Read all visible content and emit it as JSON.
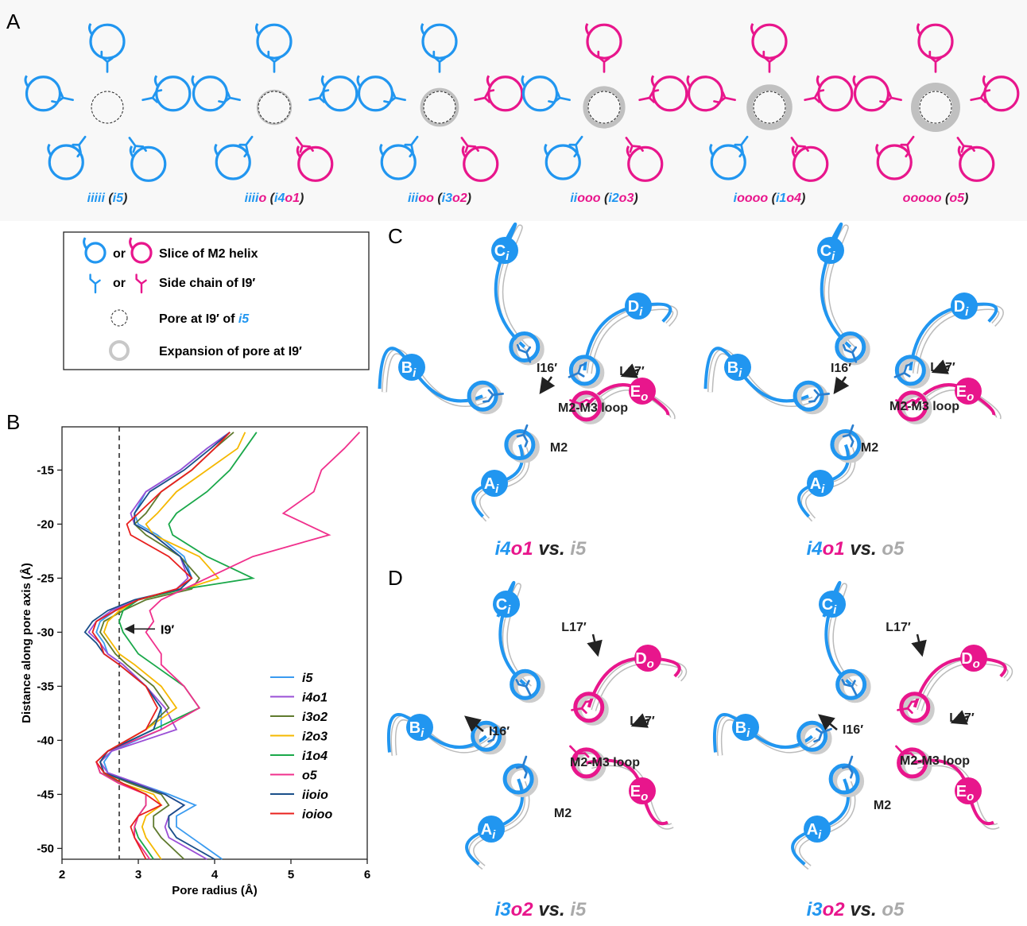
{
  "panel_labels": [
    "A",
    "B",
    "C",
    "D"
  ],
  "panel_a": {
    "diagrams": [
      {
        "label": [
          {
            "text": "iiiii",
            "color": "#2196f0"
          },
          {
            "text": " (",
            "color": "#222222"
          },
          {
            "text": "i5",
            "color": "#2196f0"
          },
          {
            "text": ")",
            "color": "#222222"
          }
        ]
      },
      {
        "label": [
          {
            "text": "iiii",
            "color": "#2196f0"
          },
          {
            "text": "o",
            "color": "#e8168c"
          },
          {
            "text": " (",
            "color": "#222222"
          },
          {
            "text": "i4",
            "color": "#2196f0"
          },
          {
            "text": "o1",
            "color": "#e8168c"
          },
          {
            "text": ")",
            "color": "#222222"
          }
        ]
      },
      {
        "label": [
          {
            "text": "iii",
            "color": "#2196f0"
          },
          {
            "text": "oo",
            "color": "#e8168c"
          },
          {
            "text": " (",
            "color": "#222222"
          },
          {
            "text": "i3",
            "color": "#2196f0"
          },
          {
            "text": "o2",
            "color": "#e8168c"
          },
          {
            "text": ")",
            "color": "#222222"
          }
        ]
      },
      {
        "label": [
          {
            "text": "ii",
            "color": "#2196f0"
          },
          {
            "text": "ooo",
            "color": "#e8168c"
          },
          {
            "text": " (",
            "color": "#222222"
          },
          {
            "text": "i2",
            "color": "#2196f0"
          },
          {
            "text": "o3",
            "color": "#e8168c"
          },
          {
            "text": ")",
            "color": "#222222"
          }
        ]
      },
      {
        "label": [
          {
            "text": "i",
            "color": "#2196f0"
          },
          {
            "text": "oooo",
            "color": "#e8168c"
          },
          {
            "text": " (",
            "color": "#222222"
          },
          {
            "text": "i1",
            "color": "#2196f0"
          },
          {
            "text": "o4",
            "color": "#e8168c"
          },
          {
            "text": ")",
            "color": "#222222"
          }
        ]
      },
      {
        "label": [
          {
            "text": "ooooo",
            "color": "#e8168c"
          },
          {
            "text": " (",
            "color": "#222222"
          },
          {
            "text": "o5",
            "color": "#e8168c"
          },
          {
            "text": ")",
            "color": "#222222"
          }
        ]
      }
    ]
  },
  "legend": {
    "helix": {
      "or": "or",
      "text": "Slice of M2 helix"
    },
    "side_chain": {
      "or": "or",
      "text": "Side chain of I9′"
    },
    "pore": {
      "text": "Pore at I9′ of ",
      "highlight": "i5"
    },
    "expansion": {
      "text": "Expansion of pore at I9′"
    }
  },
  "chart_data": {
    "type": "line",
    "orientation": "vertical",
    "xlabel": "Pore radius (Å)",
    "ylabel": "Distance along pore axis (Å)",
    "xlim": [
      2,
      6
    ],
    "xticks": [
      2,
      3,
      4,
      5,
      6
    ],
    "ylim": [
      -51,
      -11
    ],
    "yticks": [
      -15,
      -20,
      -25,
      -30,
      -35,
      -40,
      -45,
      -50
    ],
    "reference_line": 2.75,
    "annotation": {
      "text": "I9′",
      "y": -29.7,
      "x": 3.25
    },
    "y": [
      -11.5,
      -13,
      -15,
      -17,
      -19,
      -20,
      -21,
      -23,
      -25,
      -26,
      -27,
      -28,
      -29,
      -30,
      -31,
      -32,
      -33,
      -35,
      -37,
      -39,
      -41,
      -42,
      -43,
      -44,
      -45,
      -46,
      -47,
      -48,
      -49,
      -51
    ],
    "series": [
      {
        "name": "i5",
        "color": "#3a9bf0",
        "values": [
          4.2,
          3.9,
          3.55,
          3.1,
          2.95,
          3.0,
          3.25,
          3.6,
          3.7,
          3.55,
          3.0,
          2.7,
          2.5,
          2.45,
          2.55,
          2.6,
          2.8,
          3.1,
          3.3,
          3.3,
          2.65,
          2.55,
          2.6,
          3.0,
          3.4,
          3.75,
          3.5,
          3.5,
          3.7,
          4.1
        ]
      },
      {
        "name": "i4o1",
        "color": "#9a4fd6",
        "values": [
          4.2,
          3.9,
          3.55,
          3.1,
          2.9,
          2.95,
          3.2,
          3.55,
          3.65,
          3.5,
          3.0,
          2.65,
          2.45,
          2.35,
          2.5,
          2.6,
          2.8,
          3.1,
          3.35,
          3.5,
          2.65,
          2.5,
          2.6,
          3.0,
          3.35,
          3.6,
          3.4,
          3.35,
          3.4,
          3.9
        ]
      },
      {
        "name": "i3o2",
        "color": "#5f7a2e",
        "values": [
          4.25,
          4.0,
          3.7,
          3.3,
          3.1,
          2.95,
          3.1,
          3.55,
          3.8,
          3.7,
          3.1,
          2.8,
          2.55,
          2.5,
          2.6,
          2.7,
          2.85,
          3.2,
          3.4,
          3.1,
          2.6,
          2.5,
          2.55,
          2.9,
          3.3,
          3.4,
          3.2,
          3.2,
          3.3,
          3.6
        ]
      },
      {
        "name": "i2o3",
        "color": "#f5b800",
        "values": [
          4.4,
          4.3,
          3.9,
          3.5,
          3.25,
          3.1,
          3.2,
          3.8,
          4.05,
          3.6,
          3.0,
          2.75,
          2.6,
          2.55,
          2.65,
          2.75,
          2.95,
          3.3,
          3.5,
          3.1,
          2.6,
          2.5,
          2.55,
          2.8,
          3.2,
          3.3,
          3.1,
          3.05,
          3.1,
          3.3
        ]
      },
      {
        "name": "i1o4",
        "color": "#1aa84a",
        "values": [
          4.55,
          4.4,
          4.2,
          3.9,
          3.5,
          3.4,
          3.45,
          3.9,
          4.5,
          3.6,
          3.0,
          2.8,
          2.75,
          2.8,
          2.9,
          3.0,
          3.2,
          3.6,
          3.8,
          3.2,
          2.6,
          2.45,
          2.5,
          2.8,
          3.1,
          3.1,
          3.0,
          2.95,
          3.0,
          3.2
        ]
      },
      {
        "name": "o5",
        "color": "#f0308c",
        "values": [
          5.9,
          5.7,
          5.4,
          5.3,
          4.9,
          5.2,
          5.5,
          4.5,
          3.9,
          3.6,
          3.3,
          3.15,
          3.2,
          3.1,
          3.2,
          3.3,
          3.3,
          3.6,
          3.8,
          3.3,
          2.6,
          2.45,
          2.5,
          2.75,
          3.1,
          3.1,
          3.0,
          2.95,
          2.95,
          3.15
        ]
      },
      {
        "name": "iioio",
        "color": "#1a4f8a",
        "values": [
          4.2,
          3.95,
          3.6,
          3.15,
          2.95,
          2.95,
          3.2,
          3.55,
          3.7,
          3.55,
          2.95,
          2.6,
          2.4,
          2.3,
          2.45,
          2.55,
          2.75,
          3.1,
          3.3,
          3.2,
          2.6,
          2.5,
          2.55,
          2.95,
          3.35,
          3.6,
          3.4,
          3.4,
          3.5,
          4.0
        ]
      },
      {
        "name": "ioioo",
        "color": "#e8201e",
        "values": [
          4.2,
          4.0,
          3.7,
          3.3,
          3.0,
          2.85,
          2.9,
          3.4,
          3.7,
          3.5,
          3.0,
          2.7,
          2.45,
          2.4,
          2.5,
          2.55,
          2.75,
          3.1,
          3.25,
          3.1,
          2.6,
          2.45,
          2.55,
          2.8,
          3.1,
          3.3,
          3.0,
          2.9,
          2.95,
          3.1
        ]
      }
    ]
  },
  "structures": [
    {
      "caption": [
        {
          "text": "i4",
          "color": "#2196f0"
        },
        {
          "text": "o1",
          "color": "#e8168c"
        },
        {
          "text": " vs. ",
          "color": "#222222"
        },
        {
          "text": "i5",
          "color": "#aaaaaa"
        }
      ],
      "subunits": [
        {
          "letter": "C",
          "sub": "i"
        },
        {
          "letter": "D",
          "sub": "i"
        },
        {
          "letter": "B",
          "sub": "i"
        },
        {
          "letter": "A",
          "sub": "i"
        },
        {
          "letter": "E",
          "sub": "o"
        }
      ],
      "annotations": [
        "I16′",
        "L17′",
        "M2-M3 loop",
        "M2"
      ]
    },
    {
      "caption": [
        {
          "text": "i4",
          "color": "#2196f0"
        },
        {
          "text": "o1",
          "color": "#e8168c"
        },
        {
          "text": " vs. ",
          "color": "#222222"
        },
        {
          "text": "o5",
          "color": "#aaaaaa"
        }
      ],
      "subunits": [
        {
          "letter": "C",
          "sub": "i"
        },
        {
          "letter": "D",
          "sub": "i"
        },
        {
          "letter": "B",
          "sub": "i"
        },
        {
          "letter": "A",
          "sub": "i"
        },
        {
          "letter": "E",
          "sub": "o"
        }
      ],
      "annotations": [
        "I16′",
        "L17′",
        "M2-M3 loop",
        "M2"
      ]
    },
    {
      "caption": [
        {
          "text": "i3",
          "color": "#2196f0"
        },
        {
          "text": "o2",
          "color": "#e8168c"
        },
        {
          "text": " vs. ",
          "color": "#222222"
        },
        {
          "text": "i5",
          "color": "#aaaaaa"
        }
      ],
      "subunits": [
        {
          "letter": "C",
          "sub": "i"
        },
        {
          "letter": "D",
          "sub": "o"
        },
        {
          "letter": "B",
          "sub": "i"
        },
        {
          "letter": "A",
          "sub": "i"
        },
        {
          "letter": "E",
          "sub": "o"
        }
      ],
      "annotations": [
        "L17′",
        "I16′",
        "L17′",
        "M2-M3 loop",
        "M2"
      ]
    },
    {
      "caption": [
        {
          "text": "i3",
          "color": "#2196f0"
        },
        {
          "text": "o2",
          "color": "#e8168c"
        },
        {
          "text": " vs. ",
          "color": "#222222"
        },
        {
          "text": "o5",
          "color": "#aaaaaa"
        }
      ],
      "subunits": [
        {
          "letter": "C",
          "sub": "i"
        },
        {
          "letter": "D",
          "sub": "o"
        },
        {
          "letter": "B",
          "sub": "i"
        },
        {
          "letter": "A",
          "sub": "i"
        },
        {
          "letter": "E",
          "sub": "o"
        }
      ],
      "annotations": [
        "L17′",
        "I16′",
        "L17′",
        "M2-M3 loop",
        "M2"
      ]
    }
  ]
}
